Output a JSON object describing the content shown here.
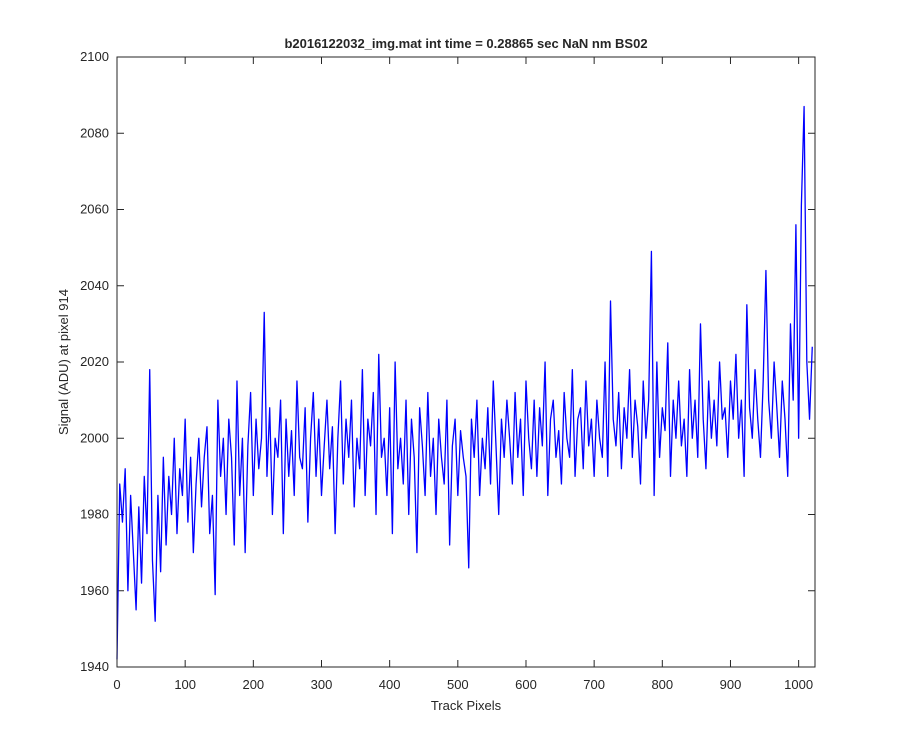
{
  "chart_data": {
    "type": "line",
    "title": "b2016122032_img.mat int time = 0.28865 sec  NaN nm BS02",
    "x_label": "Track Pixels",
    "y_label": "Signal (ADU) at pixel 914",
    "xlim": [
      0,
      1024
    ],
    "ylim": [
      1940,
      2100
    ],
    "xticks": [
      0,
      100,
      200,
      300,
      400,
      500,
      600,
      700,
      800,
      900,
      1000
    ],
    "yticks": [
      1940,
      1960,
      1980,
      2000,
      2020,
      2040,
      2060,
      2080,
      2100
    ],
    "grid": false,
    "x": [
      0,
      4,
      8,
      12,
      16,
      20,
      24,
      28,
      32,
      36,
      40,
      44,
      48,
      52,
      56,
      60,
      64,
      68,
      72,
      76,
      80,
      84,
      88,
      92,
      96,
      100,
      104,
      108,
      112,
      116,
      120,
      124,
      128,
      132,
      136,
      140,
      144,
      148,
      152,
      156,
      160,
      164,
      168,
      172,
      176,
      180,
      184,
      188,
      192,
      196,
      200,
      204,
      208,
      212,
      216,
      220,
      224,
      228,
      232,
      236,
      240,
      244,
      248,
      252,
      256,
      260,
      264,
      268,
      272,
      276,
      280,
      284,
      288,
      292,
      296,
      300,
      304,
      308,
      312,
      316,
      320,
      324,
      328,
      332,
      336,
      340,
      344,
      348,
      352,
      356,
      360,
      364,
      368,
      372,
      376,
      380,
      384,
      388,
      392,
      396,
      400,
      404,
      408,
      412,
      416,
      420,
      424,
      428,
      432,
      436,
      440,
      444,
      448,
      452,
      456,
      460,
      464,
      468,
      472,
      476,
      480,
      484,
      488,
      492,
      496,
      500,
      504,
      508,
      512,
      516,
      520,
      524,
      528,
      532,
      536,
      540,
      544,
      548,
      552,
      556,
      560,
      564,
      568,
      572,
      576,
      580,
      584,
      588,
      592,
      596,
      600,
      604,
      608,
      612,
      616,
      620,
      624,
      628,
      632,
      636,
      640,
      644,
      648,
      652,
      656,
      660,
      664,
      668,
      672,
      676,
      680,
      684,
      688,
      692,
      696,
      700,
      704,
      708,
      712,
      716,
      720,
      724,
      728,
      732,
      736,
      740,
      744,
      748,
      752,
      756,
      760,
      764,
      768,
      772,
      776,
      780,
      784,
      788,
      792,
      796,
      800,
      804,
      808,
      812,
      816,
      820,
      824,
      828,
      832,
      836,
      840,
      844,
      848,
      852,
      856,
      860,
      864,
      868,
      872,
      876,
      880,
      884,
      888,
      892,
      896,
      900,
      904,
      908,
      912,
      916,
      920,
      924,
      928,
      932,
      936,
      940,
      944,
      948,
      952,
      956,
      960,
      964,
      968,
      972,
      976,
      980,
      984,
      988,
      992,
      996,
      1000,
      1004,
      1008,
      1012,
      1016,
      1020
    ],
    "series": [
      {
        "name": "signal",
        "color": "#0000ff",
        "values": [
          1942,
          1988,
          1978,
          1992,
          1960,
          1985,
          1970,
          1955,
          1982,
          1962,
          1990,
          1975,
          2018,
          1968,
          1952,
          1985,
          1965,
          1995,
          1972,
          1990,
          1980,
          2000,
          1975,
          1992,
          1985,
          2005,
          1978,
          1995,
          1970,
          1988,
          2000,
          1982,
          1995,
          2003,
          1975,
          1985,
          1959,
          2010,
          1990,
          2000,
          1980,
          2005,
          1995,
          1972,
          2015,
          1985,
          2000,
          1970,
          1998,
          2012,
          1985,
          2005,
          1992,
          2000,
          2033,
          1990,
          2008,
          1980,
          2000,
          1995,
          2010,
          1975,
          2005,
          1990,
          2002,
          1985,
          2015,
          1995,
          1992,
          2008,
          1978,
          2000,
          2012,
          1990,
          2005,
          1985,
          1998,
          2010,
          1992,
          2003,
          1975,
          2000,
          2015,
          1988,
          2005,
          1995,
          2010,
          1982,
          2000,
          1992,
          2018,
          1985,
          2005,
          1998,
          2012,
          1980,
          2022,
          1995,
          2000,
          1985,
          2008,
          1975,
          2020,
          1992,
          2000,
          1988,
          2010,
          1980,
          2005,
          1995,
          1970,
          2008,
          1998,
          1985,
          2012,
          1990,
          2000,
          1980,
          2005,
          1995,
          1988,
          2010,
          1972,
          1998,
          2005,
          1985,
          2002,
          1995,
          1990,
          1966,
          2005,
          1995,
          2010,
          1985,
          2000,
          1992,
          2008,
          1988,
          2015,
          1998,
          1980,
          2005,
          1995,
          2010,
          2000,
          1988,
          2012,
          1995,
          2005,
          1985,
          2015,
          2000,
          1992,
          2010,
          1990,
          2008,
          1998,
          2020,
          1985,
          2005,
          2010,
          1995,
          2002,
          1988,
          2012,
          2000,
          1995,
          2018,
          1990,
          2005,
          2008,
          1992,
          2015,
          1998,
          2005,
          1990,
          2010,
          2000,
          1995,
          2020,
          1990,
          2036,
          2005,
          1998,
          2012,
          1992,
          2008,
          2000,
          2018,
          1995,
          2010,
          2003,
          1988,
          2015,
          2000,
          2010,
          2049,
          1985,
          2020,
          1995,
          2008,
          2002,
          2025,
          1990,
          2010,
          2000,
          2015,
          1998,
          2005,
          1990,
          2018,
          2000,
          2010,
          1995,
          2030,
          2005,
          1992,
          2015,
          2000,
          2010,
          1998,
          2020,
          2005,
          2008,
          1995,
          2015,
          2005,
          2022,
          2000,
          2010,
          1990,
          2035,
          2008,
          2000,
          2018,
          2005,
          1995,
          2015,
          2044,
          2010,
          2000,
          2020,
          2008,
          1995,
          2015,
          2005,
          1990,
          2030,
          2010,
          2056,
          2000,
          2061,
          2087,
          2020,
          2005,
          2024
        ]
      }
    ]
  }
}
